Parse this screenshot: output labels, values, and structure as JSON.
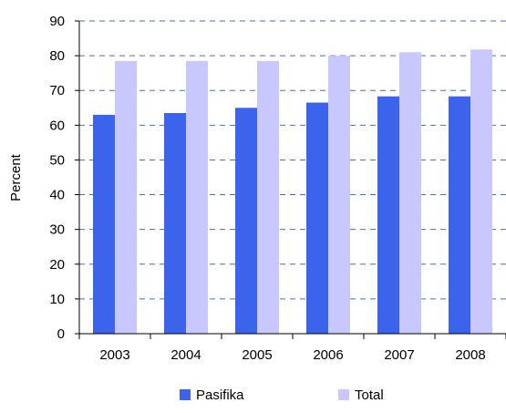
{
  "chart_data": {
    "type": "bar",
    "categories": [
      "2003",
      "2004",
      "2005",
      "2006",
      "2007",
      "2008"
    ],
    "series": [
      {
        "name": "Pasifika",
        "values": [
          63,
          63.5,
          65,
          66.5,
          68.3,
          68.3
        ],
        "color": "#3b63ec"
      },
      {
        "name": "Total",
        "values": [
          78.5,
          78.5,
          78.5,
          80,
          81,
          81.8
        ],
        "color": "#c8c8ff"
      }
    ],
    "title": "",
    "xlabel": "",
    "ylabel": "Percent",
    "ylim": [
      0,
      90
    ],
    "yticks": [
      0,
      10,
      20,
      30,
      40,
      50,
      60,
      70,
      80,
      90
    ],
    "grid": "horizontal dashed",
    "legend_position": "bottom"
  }
}
